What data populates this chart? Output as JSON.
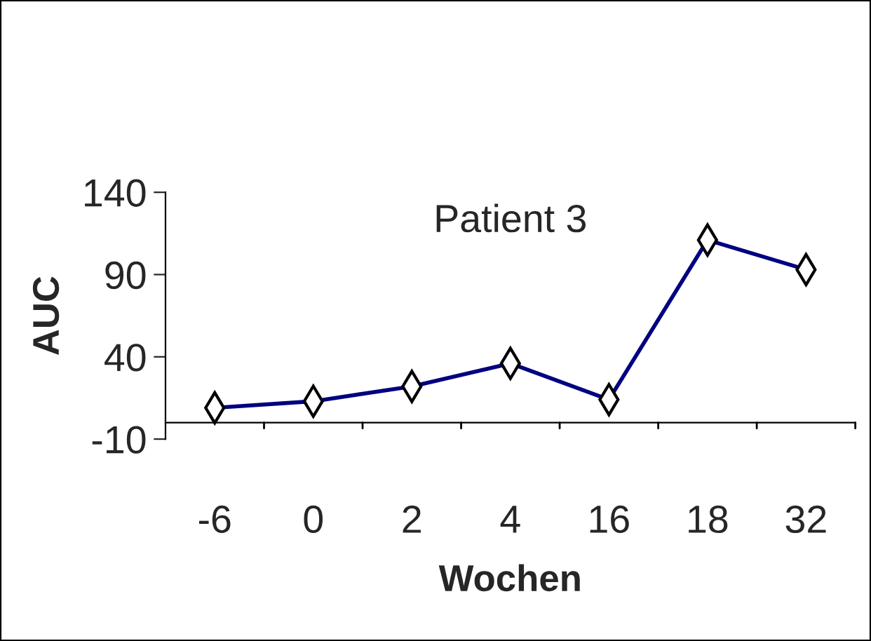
{
  "chart_data": {
    "type": "line",
    "title": "Patient 3",
    "xlabel": "Wochen",
    "ylabel": "AUC",
    "categories": [
      "-6",
      "0",
      "2",
      "4",
      "16",
      "18",
      "32"
    ],
    "series": [
      {
        "color": "#000080",
        "values": [
          9,
          13,
          22,
          36,
          14,
          111,
          93
        ]
      }
    ],
    "ylim": [
      -10,
      140
    ],
    "yticks": [
      -10,
      40,
      90,
      140
    ],
    "grid": false,
    "marker": "diamond",
    "line_style": "solid"
  }
}
